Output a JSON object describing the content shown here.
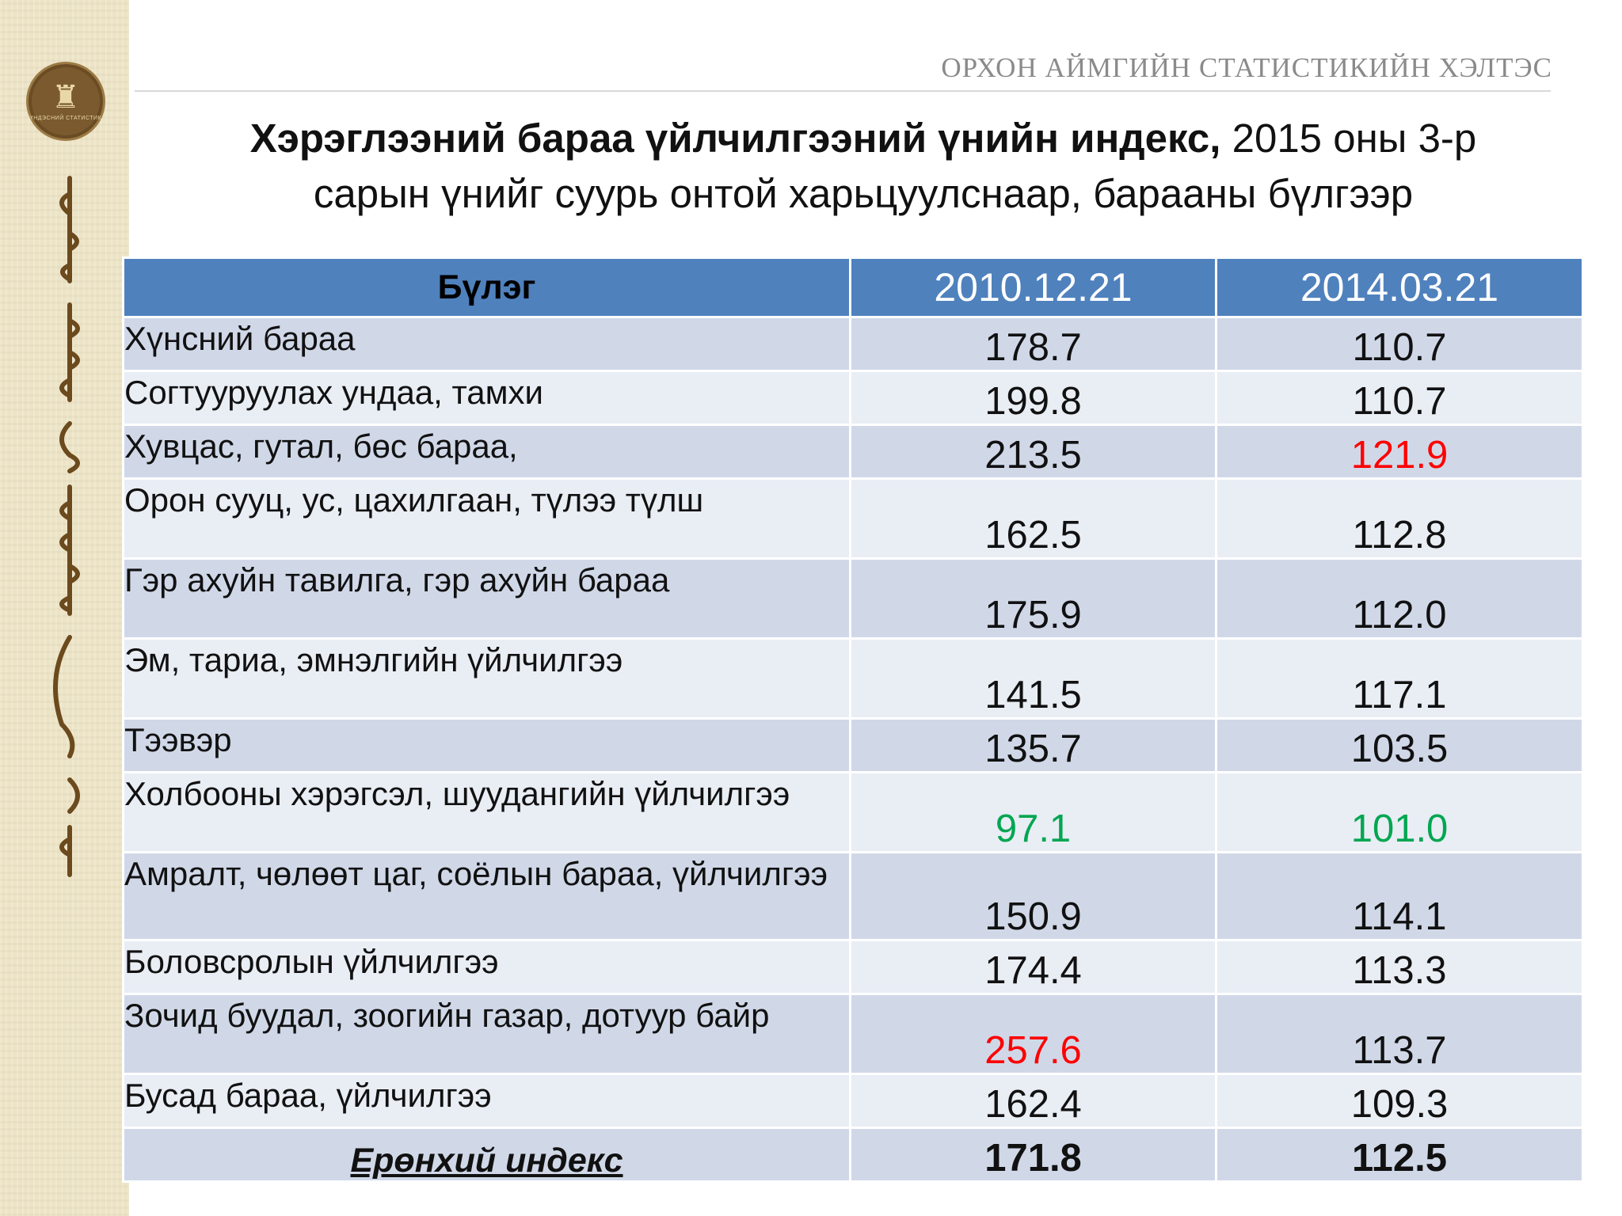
{
  "header": {
    "organization": "ОРХОН АЙМГИЙН СТАТИСТИКИЙН ХЭЛТЭС",
    "emblem_text": "ҮНДЭСНИЙ СТАТИСТИК"
  },
  "title": {
    "bold": "Хэрэглээний бараа үйлчилгээний үнийн индекс,",
    "rest_line1": " 2015 оны 3-р",
    "line2": "сарын үнийг  суурь онтой харьцуулснаар, барааны бүлгээр"
  },
  "table": {
    "headers": [
      "Бүлэг",
      "2010.12.21",
      "2014.03.21"
    ],
    "rows": [
      {
        "name": "Хүнсний бараа",
        "v2010": "178.7",
        "v2014": "110.7"
      },
      {
        "name": "Согтууруулах ундаа, тамхи",
        "v2010": "199.8",
        "v2014": "110.7"
      },
      {
        "name": "Хувцас, гутал, бөс бараа,",
        "v2010": "213.5",
        "v2014": "121.9"
      },
      {
        "name": "Орон сууц, ус,  цахилгаан, түлээ түлш",
        "v2010": "162.5",
        "v2014": "112.8"
      },
      {
        "name": "Гэр ахуйн тавилга, гэр ахуйн    бараа",
        "v2010": "175.9",
        "v2014": "112.0"
      },
      {
        "name": "Эм, тариа, эмнэлгийн үйлчилгээ",
        "v2010": "141.5",
        "v2014": "117.1"
      },
      {
        "name": "Тээвэр",
        "v2010": "135.7",
        "v2014": "103.5"
      },
      {
        "name": "Холбооны хэрэгсэл, шуудангийн үйлчилгээ",
        "v2010": "97.1",
        "v2014": "101.0"
      },
      {
        "name": "Амралт, чөлөөт цаг, соёлын бараа, үйлчилгээ",
        "v2010": "150.9",
        "v2014": "114.1"
      },
      {
        "name": "Боловсролын  үйлчилгээ",
        "v2010": "174.4",
        "v2014": "113.3"
      },
      {
        "name": "Зочид буудал, зоогийн газар, дотуур байр",
        "v2010": "257.6",
        "v2014": "113.7"
      },
      {
        "name": "Бусад бараа, үйлчилгээ",
        "v2010": "162.4",
        "v2014": "109.3"
      }
    ],
    "total": {
      "name": "Ерөнхий индекс",
      "v2010": "171.8",
      "v2014": "112.5"
    }
  },
  "colors": {
    "header_bg": "#4f81bd",
    "row_odd": "#d0d8e8",
    "row_even": "#e9edf4",
    "highlight_max": "#ff0000",
    "highlight_min": "#00a651"
  }
}
